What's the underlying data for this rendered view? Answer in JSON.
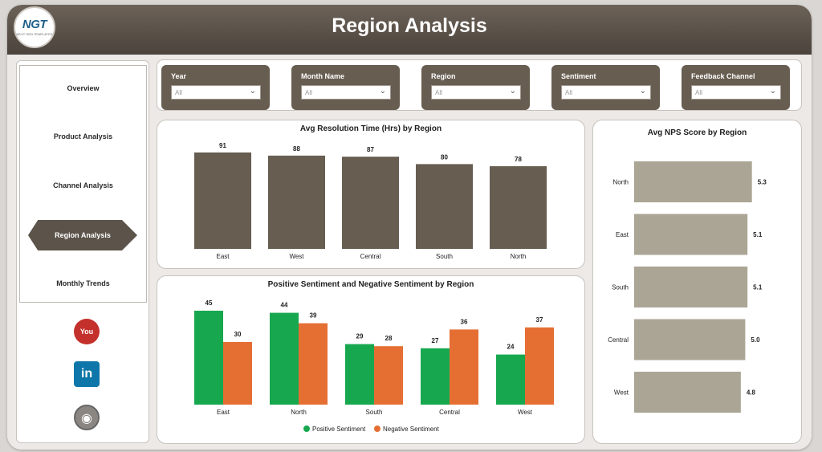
{
  "header": {
    "title": "Region Analysis",
    "logo_text": "NGT",
    "logo_sub": "NEXT GEN TEMPLATES"
  },
  "sidebar": {
    "items": [
      {
        "label": "Overview"
      },
      {
        "label": "Product Analysis"
      },
      {
        "label": "Channel Analysis"
      },
      {
        "label": "Region Analysis",
        "active": true
      },
      {
        "label": "Monthly Trends"
      }
    ],
    "social": {
      "youtube": "You Tube",
      "linkedin": "in"
    }
  },
  "filters": [
    {
      "label": "Year",
      "value": "All"
    },
    {
      "label": "Month Name",
      "value": "All"
    },
    {
      "label": "Region",
      "value": "All"
    },
    {
      "label": "Sentiment",
      "value": "All"
    },
    {
      "label": "Feedback Channel",
      "value": "All"
    }
  ],
  "colors": {
    "bar_dark": "#675d51",
    "bar_light": "#aba595",
    "positive": "#17a84f",
    "negative": "#e56f33"
  },
  "chart_data": [
    {
      "type": "bar",
      "title": "Avg Resolution Time (Hrs) by Region",
      "categories": [
        "East",
        "West",
        "Central",
        "South",
        "North"
      ],
      "values": [
        91,
        88,
        87,
        80,
        78
      ],
      "ylim": [
        0,
        100
      ]
    },
    {
      "type": "bar",
      "title": "Positive Sentiment and Negative Sentiment by Region",
      "categories": [
        "East",
        "North",
        "South",
        "Central",
        "West"
      ],
      "series": [
        {
          "name": "Positive Sentiment",
          "values": [
            45,
            44,
            29,
            27,
            24
          ]
        },
        {
          "name": "Negative Sentiment",
          "values": [
            30,
            39,
            28,
            36,
            37
          ]
        }
      ],
      "ylim": [
        0,
        50
      ],
      "legend": "bottom"
    },
    {
      "type": "bar",
      "orientation": "horizontal",
      "title": "Avg NPS Score by Region",
      "categories": [
        "North",
        "East",
        "South",
        "Central",
        "West"
      ],
      "values": [
        5.3,
        5.1,
        5.1,
        5.0,
        4.8
      ],
      "labels": [
        "5.3",
        "5.1",
        "5.1",
        "5.0",
        "4.8"
      ],
      "xlim": [
        0,
        5.6
      ]
    }
  ]
}
